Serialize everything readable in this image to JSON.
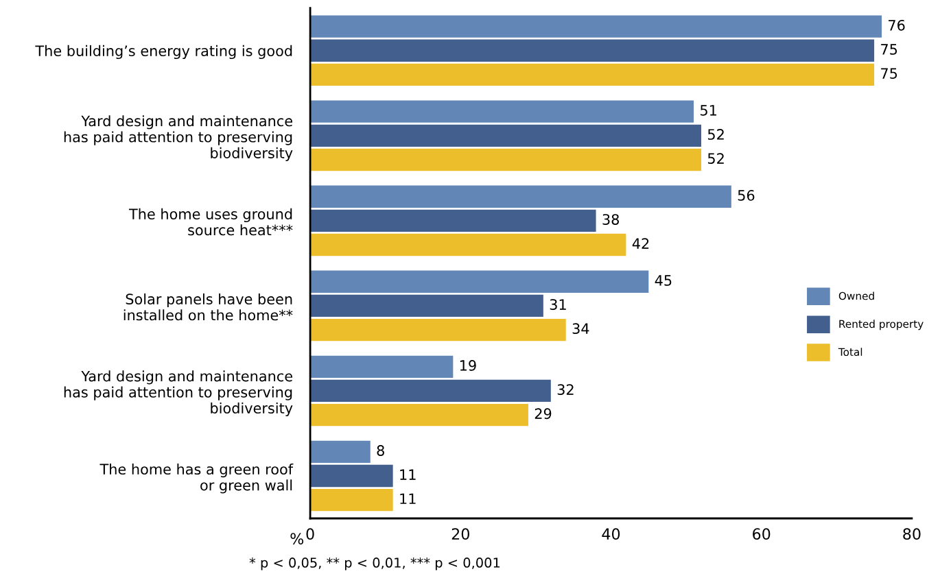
{
  "chart_data": {
    "type": "bar",
    "orientation": "horizontal",
    "categories": [
      "The building’s energy rating is good",
      "Yard design and maintenance\nhas paid attention to preserving\nbiodiversity",
      "The home uses ground\nsource heat***",
      "Solar panels have been\ninstalled on the home**",
      "Yard design and maintenance\nhas paid attention to preserving\nbiodiversity",
      "The home has a green roof\nor green wall"
    ],
    "series": [
      {
        "name": "Owned",
        "color": "#6286b5",
        "values": [
          76,
          51,
          56,
          45,
          19,
          8
        ]
      },
      {
        "name": "Rented property",
        "color": "#435f8e",
        "values": [
          75,
          52,
          38,
          31,
          32,
          11
        ]
      },
      {
        "name": "Total",
        "color": "#ecbe2c",
        "values": [
          75,
          52,
          42,
          34,
          29,
          11
        ]
      }
    ],
    "xlabel": "%",
    "xlim": [
      0,
      80
    ],
    "xticks": [
      0,
      20,
      40,
      60,
      80
    ],
    "data_labels": true,
    "grid": false,
    "legend": "right",
    "annotations": [
      "* p < 0,05, ** p < 0,01, *** p < 0,001"
    ]
  }
}
